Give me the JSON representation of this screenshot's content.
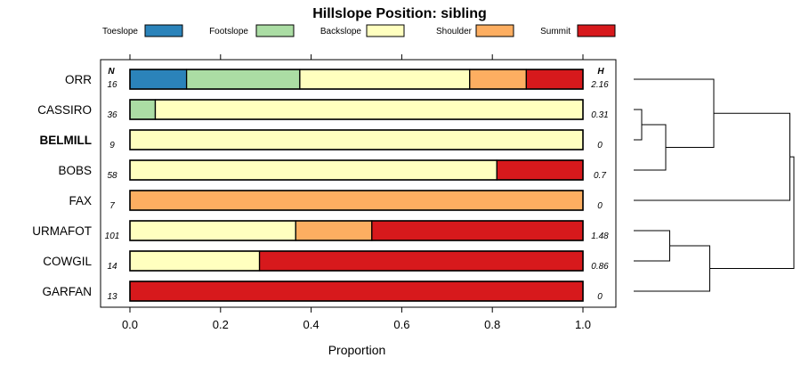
{
  "chart_data": {
    "type": "bar",
    "orientation": "horizontal",
    "stacked": true,
    "title": "Hillslope Position: sibling",
    "xlabel": "Proportion",
    "ylabel": "",
    "xlim": [
      0,
      1
    ],
    "x_ticks": [
      0.0,
      0.2,
      0.4,
      0.6,
      0.8,
      1.0
    ],
    "x_tick_labels": [
      "0.0",
      "0.2",
      "0.4",
      "0.6",
      "0.8",
      "1.0"
    ],
    "legend_position": "top",
    "n_header": "N",
    "h_header": "H",
    "categories": [
      "ORR",
      "CASSIRO",
      "BELMILL",
      "BOBS",
      "FAX",
      "URMAFOT",
      "COWGIL",
      "GARFAN"
    ],
    "highlighted_category": "BELMILL",
    "n_values": [
      "16",
      "36",
      "9",
      "58",
      "7",
      "101",
      "14",
      "13"
    ],
    "h_values": [
      "2.16",
      "0.31",
      "0",
      "0.7",
      "0",
      "1.48",
      "0.86",
      "0"
    ],
    "series": [
      {
        "name": "Toeslope",
        "color": "#2b83ba",
        "values": [
          0.125,
          0,
          0,
          0,
          0,
          0,
          0,
          0
        ]
      },
      {
        "name": "Footslope",
        "color": "#abdda4",
        "values": [
          0.25,
          0.056,
          0,
          0,
          0,
          0,
          0,
          0
        ]
      },
      {
        "name": "Backslope",
        "color": "#ffffbf",
        "values": [
          0.375,
          0.944,
          1,
          0.81,
          0,
          0.366,
          0.286,
          0
        ]
      },
      {
        "name": "Shoulder",
        "color": "#fdae61",
        "values": [
          0.125,
          0,
          0,
          0,
          1,
          0.168,
          0,
          0
        ]
      },
      {
        "name": "Summit",
        "color": "#d7191c",
        "values": [
          0.125,
          0,
          0,
          0.19,
          0,
          0.466,
          0.714,
          1
        ]
      }
    ],
    "dendrogram": {
      "merges": [
        {
          "left": "CASSIRO",
          "right": "BELMILL",
          "height": 0.1
        },
        {
          "left": "CASSIRO+BELMILL",
          "right": "BOBS",
          "height": 0.4
        },
        {
          "left": "ORR",
          "right": "CASSIRO+BELMILL+BOBS",
          "height": 1.0
        },
        {
          "left": "URMAFOT",
          "right": "COWGIL",
          "height": 0.45
        },
        {
          "left": "URMAFOT+COWGIL",
          "right": "GARFAN",
          "height": 0.95
        },
        {
          "left": "ORR+CASSIRO+BELMILL+BOBS",
          "right": "FAX",
          "height": 1.95
        },
        {
          "left": "ORR+CASSIRO+BELMILL+BOBS+FAX",
          "right": "URMAFOT+COWGIL+GARFAN",
          "height": 2.0
        }
      ]
    }
  }
}
